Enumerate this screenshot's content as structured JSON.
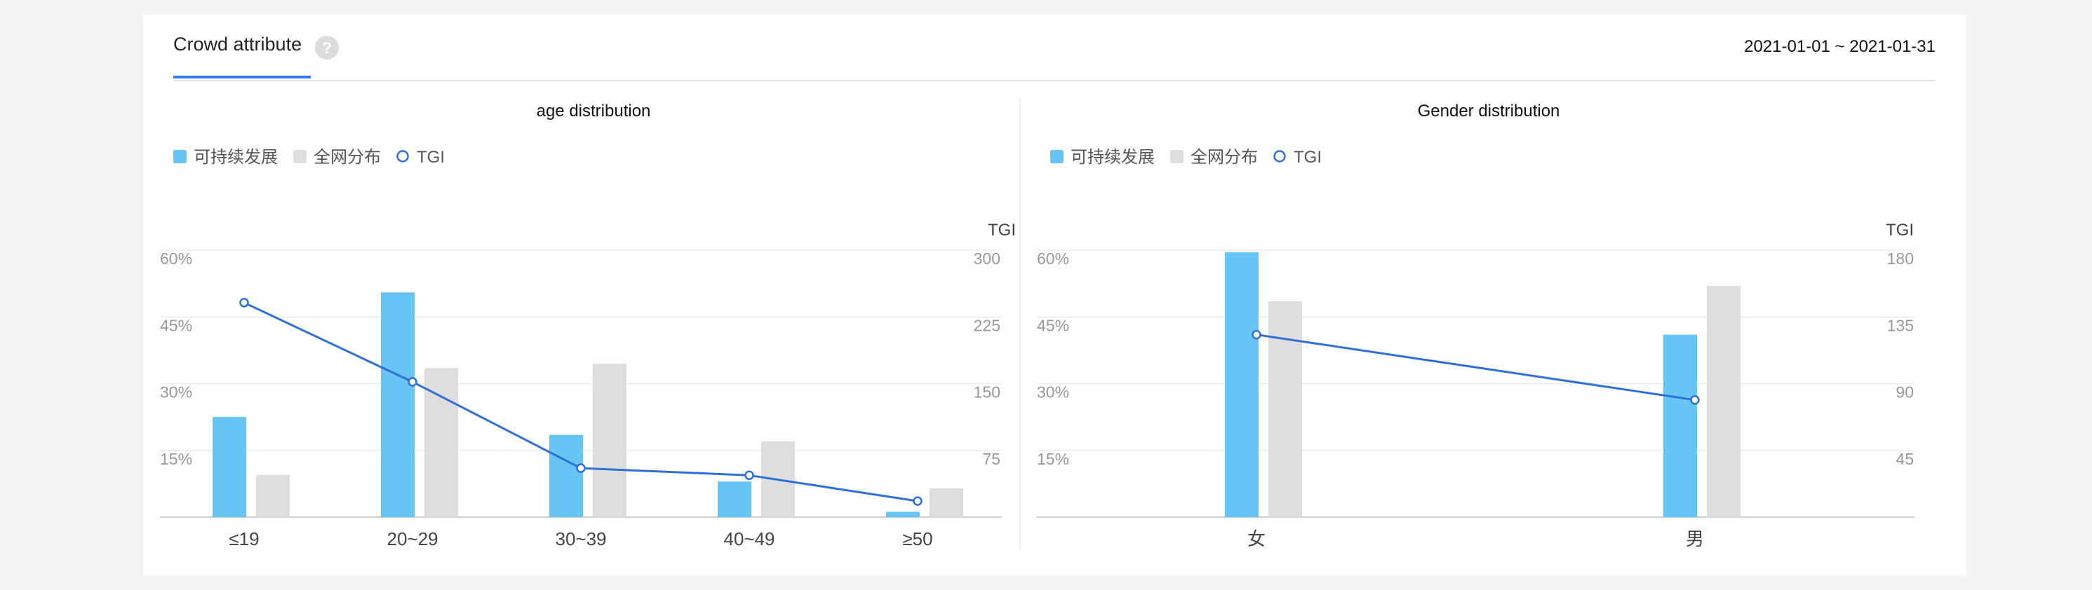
{
  "header": {
    "tab_label": "Crowd attribute",
    "help_glyph": "?",
    "date_range": "2021-01-01 ~ 2021-01-31"
  },
  "colors": {
    "primary_bar": "#66c5f5",
    "baseline_bar": "#dedede",
    "tgi_line": "#2f6fd8",
    "accent": "#2f7cf6"
  },
  "chart_data": [
    {
      "type": "bar",
      "title": "age distribution",
      "legend": [
        "可持续发展",
        "全网分布",
        "TGI"
      ],
      "legend_position": "top-left",
      "categories": [
        "≤19",
        "20~29",
        "30~39",
        "40~49",
        "≥50"
      ],
      "series": [
        {
          "name": "可持续发展",
          "type": "bar",
          "axis": "left",
          "values": [
            22.5,
            50.5,
            18.5,
            8,
            1.2
          ]
        },
        {
          "name": "全网分布",
          "type": "bar",
          "axis": "left",
          "values": [
            9.5,
            33.5,
            34.5,
            17,
            6.5
          ]
        },
        {
          "name": "TGI",
          "type": "line",
          "axis": "right",
          "values": [
            241,
            152,
            55,
            47,
            18
          ]
        }
      ],
      "y_left": {
        "ticks": [
          "60%",
          "45%",
          "30%",
          "15%"
        ],
        "tick_values": [
          60,
          45,
          30,
          15
        ],
        "range": [
          0,
          60
        ]
      },
      "y_right": {
        "label": "TGI",
        "ticks": [
          "300",
          "225",
          "150",
          "75"
        ],
        "tick_values": [
          300,
          225,
          150,
          75
        ],
        "range": [
          0,
          300
        ]
      },
      "grid": true
    },
    {
      "type": "bar",
      "title": "Gender distribution",
      "legend": [
        "可持续发展",
        "全网分布",
        "TGI"
      ],
      "legend_position": "top-left",
      "categories": [
        "女",
        "男"
      ],
      "series": [
        {
          "name": "可持续发展",
          "type": "bar",
          "axis": "left",
          "values": [
            59.5,
            41
          ]
        },
        {
          "name": "全网分布",
          "type": "bar",
          "axis": "left",
          "values": [
            48.5,
            52
          ]
        },
        {
          "name": "TGI",
          "type": "line",
          "axis": "right",
          "values": [
            123,
            79
          ]
        }
      ],
      "y_left": {
        "ticks": [
          "60%",
          "45%",
          "30%",
          "15%"
        ],
        "tick_values": [
          60,
          45,
          30,
          15
        ],
        "range": [
          0,
          60
        ]
      },
      "y_right": {
        "label": "TGI",
        "ticks": [
          "180",
          "135",
          "90",
          "45"
        ],
        "tick_values": [
          180,
          135,
          90,
          45
        ],
        "range": [
          0,
          180
        ]
      },
      "grid": true
    }
  ]
}
